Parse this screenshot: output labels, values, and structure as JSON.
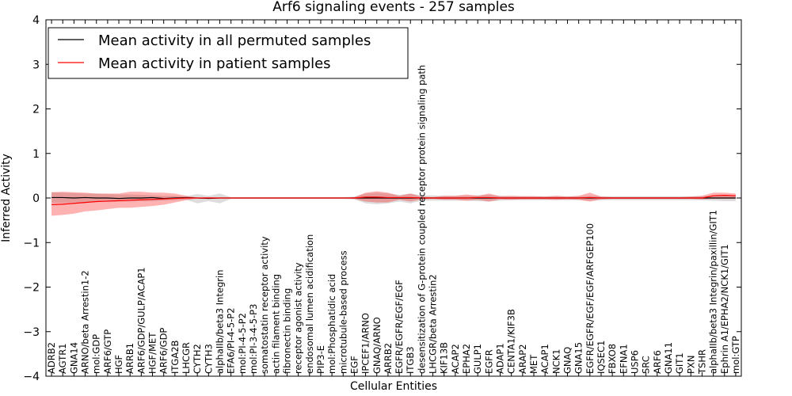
{
  "chart_data": {
    "type": "line",
    "title": "Arf6 signaling events - 257 samples",
    "xlabel": "Cellular Entities",
    "ylabel": "Inferred Activity",
    "ylim": [
      -4,
      4
    ],
    "yticks": [
      -4,
      -3,
      -2,
      -1,
      0,
      1,
      2,
      3,
      4
    ],
    "legend_position": "top-left",
    "categories": [
      "ADRB2",
      "AGTR1",
      "GNA14",
      "ARNO/beta Arrestin1-2",
      "mol:GDP",
      "ARF6/GTP",
      "HGF",
      "ARRB1",
      "ARF6/GDP/GULP/ACAP1",
      "HGF/MET",
      "ARF6/GDP",
      "ITGA2B",
      "LHCGR",
      "CYTH2",
      "CYTH3",
      "alphaIIb/beta3 Integrin",
      "EFA6/PI-4-5-P2",
      "mol:PI-4-5-P2",
      "mol:PI-3-4-5-P3",
      "somatostatin receptor activity",
      "actin filament binding",
      "fibronectin binding",
      "receptor agonist activity",
      "endosomal lumen acidification",
      "PIP3-E",
      "mol:Phosphatidic acid",
      "microtubule-based process",
      "EGF",
      "IPCEF1/ARNO",
      "GNAQ/ARNO",
      "ARRB2",
      "EGFR/EGFR/EGF/EGF",
      "ITGB3",
      "desensitization of G-protein coupled receptor protein signaling path",
      "LHCGR/beta Arrestin2",
      "KIF13B",
      "ACAP2",
      "EPHA2",
      "GULP1",
      "EGFR",
      "ADAP1",
      "CENTA1/KIF3B",
      "ARAP2",
      "MET",
      "ACAP1",
      "NCK1",
      "GNAQ",
      "GNA15",
      "EGFR/EGFR/EGF/EGF/ARFGEP100",
      "IQSEC1",
      "FBXO8",
      "EFNA1",
      "USP6",
      "SRC",
      "ARF6",
      "GNA11",
      "GIT1",
      "PXN",
      "TSHR",
      "alphaIIb/beta3 Integrin/paxillin/GIT1",
      "Ephrin A1/EPHA2/NCK1/GIT1",
      "mol:GTP"
    ],
    "series": [
      {
        "name": "Mean activity in all permuted samples",
        "color": "#000000",
        "values": [
          0.01,
          0.01,
          0.0,
          0.01,
          0.0,
          0.0,
          -0.01,
          0.0,
          0.0,
          0.01,
          -0.01,
          0.0,
          0.01,
          0.0,
          -0.01,
          0.0,
          0.0,
          0.0,
          0.0,
          0.0,
          0.0,
          0.0,
          0.0,
          0.0,
          0.0,
          0.0,
          0.0,
          0.0,
          0.0,
          0.0,
          0.0,
          0.0,
          0.0,
          0.0,
          0.0,
          0.0,
          0.0,
          0.0,
          0.0,
          0.0,
          0.0,
          0.0,
          0.0,
          0.0,
          0.0,
          0.0,
          0.0,
          0.0,
          0.0,
          0.0,
          0.0,
          0.0,
          0.0,
          0.0,
          0.0,
          0.0,
          0.0,
          0.0,
          0.0,
          0.0,
          0.0,
          0.0
        ],
        "upper": [
          0.13,
          0.12,
          0.11,
          0.1,
          0.1,
          0.09,
          0.08,
          0.08,
          0.07,
          0.06,
          0.05,
          0.05,
          0.04,
          0.09,
          0.05,
          0.1,
          0.02,
          0.02,
          0.02,
          0.02,
          0.02,
          0.02,
          0.02,
          0.02,
          0.02,
          0.02,
          0.02,
          0.03,
          0.1,
          0.12,
          0.1,
          0.07,
          0.1,
          0.06,
          0.06,
          0.05,
          0.05,
          0.05,
          0.06,
          0.07,
          0.05,
          0.04,
          0.04,
          0.04,
          0.04,
          0.04,
          0.04,
          0.04,
          0.05,
          0.04,
          0.04,
          0.04,
          0.04,
          0.04,
          0.04,
          0.04,
          0.04,
          0.04,
          0.04,
          0.05,
          0.06,
          0.06
        ],
        "lower": [
          -0.11,
          -0.11,
          -0.1,
          -0.1,
          -0.09,
          -0.09,
          -0.08,
          -0.08,
          -0.07,
          -0.07,
          -0.06,
          -0.05,
          -0.04,
          -0.12,
          -0.07,
          -0.12,
          -0.02,
          -0.02,
          -0.02,
          -0.02,
          -0.02,
          -0.02,
          -0.02,
          -0.02,
          -0.02,
          -0.02,
          -0.02,
          -0.03,
          -0.12,
          -0.14,
          -0.12,
          -0.08,
          -0.12,
          -0.06,
          -0.06,
          -0.06,
          -0.06,
          -0.06,
          -0.07,
          -0.08,
          -0.06,
          -0.05,
          -0.05,
          -0.05,
          -0.05,
          -0.05,
          -0.05,
          -0.05,
          -0.06,
          -0.05,
          -0.05,
          -0.05,
          -0.05,
          -0.05,
          -0.05,
          -0.05,
          -0.05,
          -0.05,
          -0.05,
          -0.06,
          -0.07,
          -0.07
        ]
      },
      {
        "name": "Mean activity in patient samples",
        "color": "#ff0000",
        "values": [
          -0.15,
          -0.14,
          -0.12,
          -0.1,
          -0.08,
          -0.07,
          -0.06,
          -0.05,
          -0.04,
          -0.03,
          -0.02,
          -0.01,
          0.0,
          0.0,
          0.0,
          0.0,
          0.0,
          0.0,
          0.0,
          0.0,
          0.0,
          0.0,
          0.0,
          0.0,
          0.0,
          0.0,
          0.0,
          0.0,
          0.02,
          0.02,
          0.01,
          0.01,
          0.01,
          0.0,
          0.0,
          0.0,
          0.0,
          0.0,
          0.01,
          0.01,
          0.0,
          0.0,
          0.0,
          0.0,
          0.0,
          0.0,
          0.0,
          0.0,
          0.01,
          0.0,
          0.0,
          0.0,
          0.0,
          0.0,
          0.0,
          0.0,
          0.0,
          0.0,
          0.0,
          0.05,
          0.06,
          0.05
        ],
        "upper": [
          0.13,
          0.14,
          0.13,
          0.12,
          0.1,
          0.1,
          0.1,
          0.14,
          0.14,
          0.12,
          0.12,
          0.1,
          0.05,
          0.01,
          0.02,
          0.01,
          0.0,
          0.0,
          0.0,
          0.0,
          0.0,
          0.0,
          0.0,
          0.0,
          0.0,
          0.0,
          0.0,
          0.02,
          0.12,
          0.15,
          0.12,
          0.05,
          0.1,
          0.03,
          0.02,
          0.05,
          0.05,
          0.08,
          0.05,
          0.1,
          0.04,
          0.05,
          0.04,
          0.04,
          0.03,
          0.05,
          0.03,
          0.05,
          0.12,
          0.03,
          0.02,
          0.02,
          0.02,
          0.02,
          0.02,
          0.02,
          0.02,
          0.03,
          0.05,
          0.12,
          0.12,
          0.1
        ],
        "lower": [
          -0.4,
          -0.38,
          -0.35,
          -0.3,
          -0.28,
          -0.25,
          -0.22,
          -0.22,
          -0.2,
          -0.18,
          -0.15,
          -0.1,
          -0.05,
          -0.01,
          -0.02,
          -0.01,
          0.0,
          0.0,
          0.0,
          0.0,
          0.0,
          0.0,
          0.0,
          0.0,
          0.0,
          0.0,
          0.0,
          -0.02,
          -0.08,
          -0.1,
          -0.1,
          -0.04,
          -0.08,
          -0.03,
          -0.02,
          -0.04,
          -0.04,
          -0.06,
          -0.04,
          -0.08,
          -0.03,
          -0.04,
          -0.03,
          -0.03,
          -0.03,
          -0.04,
          -0.03,
          -0.04,
          -0.08,
          -0.03,
          -0.02,
          -0.02,
          -0.02,
          -0.02,
          -0.02,
          -0.02,
          -0.02,
          -0.02,
          -0.03,
          -0.02,
          -0.02,
          -0.02
        ]
      }
    ]
  }
}
